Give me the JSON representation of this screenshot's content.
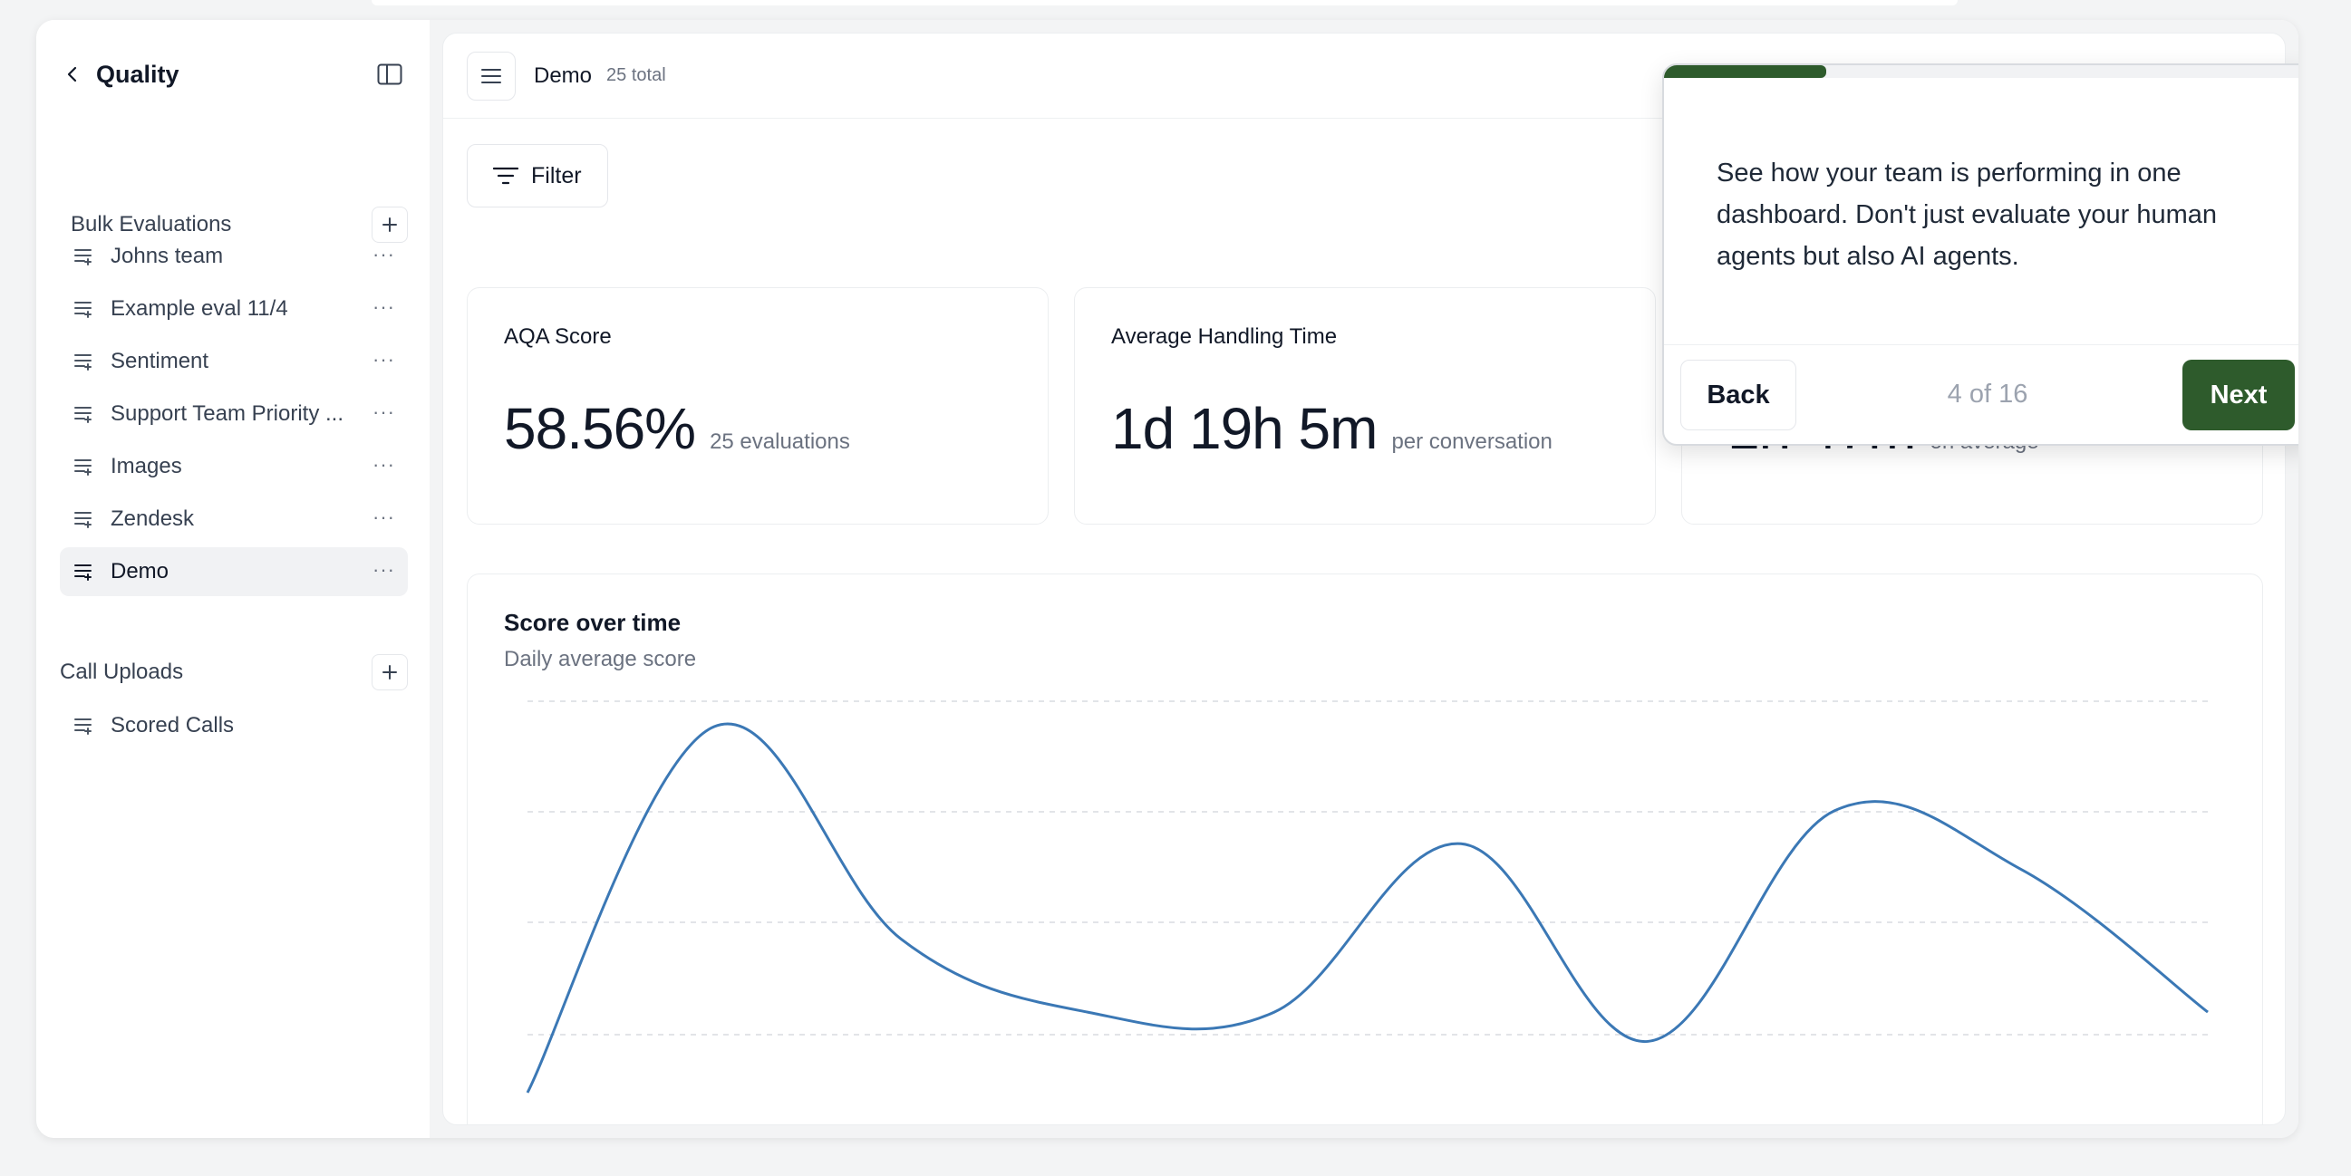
{
  "sidebar": {
    "title": "Quality",
    "sections": [
      {
        "label": "Bulk Evaluations",
        "items": [
          {
            "label": "Johns team",
            "active": false
          },
          {
            "label": "Example eval 11/4",
            "active": false
          },
          {
            "label": "Sentiment",
            "active": false
          },
          {
            "label": "Support Team Priority ...",
            "active": false
          },
          {
            "label": "Images",
            "active": false
          },
          {
            "label": "Zendesk",
            "active": false
          },
          {
            "label": "Demo",
            "active": true
          }
        ]
      },
      {
        "label": "Call Uploads",
        "items": [
          {
            "label": "Scored Calls",
            "active": false
          }
        ]
      }
    ],
    "more_glyph": "···",
    "icons": {
      "back": "chevron-left-icon",
      "toggle": "sidebar-panel-icon",
      "add": "plus-icon",
      "item": "list-icon"
    }
  },
  "header": {
    "title": "Demo",
    "count": "25 total"
  },
  "filter": {
    "label": "Filter"
  },
  "metrics": [
    {
      "title": "AQA Score",
      "value": "58.56%",
      "sub": "25 evaluations"
    },
    {
      "title": "Average Handling Time",
      "value": "1d 19h 5m",
      "sub": "per conversation"
    },
    {
      "title": "",
      "value": "1h 47m",
      "sub": "on average"
    }
  ],
  "chart_data": {
    "type": "line",
    "title": "Score over time",
    "subtitle": "Daily average score",
    "xlabel": "",
    "ylabel": "",
    "ylim": [
      0,
      100
    ],
    "grid": true,
    "series": [
      {
        "values": [
          0,
          100,
          42,
          22,
          22,
          68,
          14,
          77,
          61,
          22
        ],
        "color": "#3b78b5"
      }
    ]
  },
  "tour": {
    "text": "See how your team is performing in one dashboard. Don't just evaluate your human agents but also AI agents.",
    "back_label": "Back",
    "step_label": "4 of 16",
    "next_label": "Next",
    "progress": 0.25,
    "accent": "#2e5b2c"
  }
}
